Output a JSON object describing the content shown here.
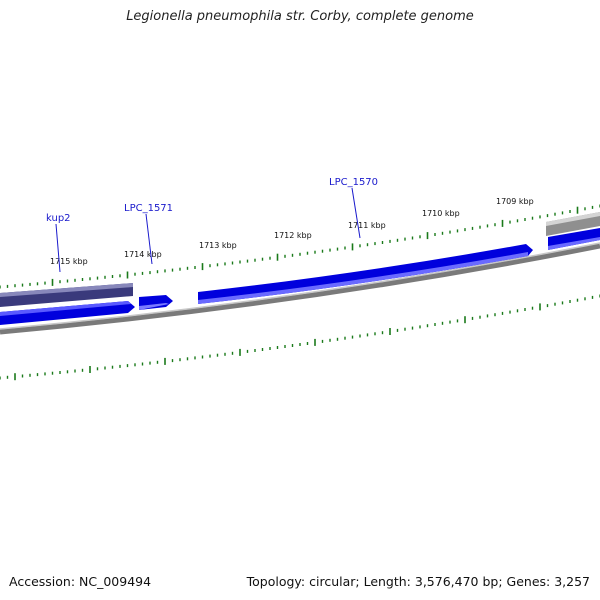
{
  "title": "Legionella pneumophila str. Corby, complete genome",
  "footer": {
    "accession": "Accession: NC_009494",
    "topology": "Topology: circular; Length: 3,576,470 bp; Genes: 3,257"
  },
  "scale_labels": [
    "1715 kbp",
    "1714 kbp",
    "1713 kbp",
    "1712 kbp",
    "1711 kbp",
    "1710 kbp",
    "1709 kbp"
  ],
  "gene_labels": [
    "kup2",
    "LPC_1571",
    "LPC_1570"
  ],
  "colors": {
    "forward_gene": "#0000dd",
    "forward_gene_highlight": "#5a5aff",
    "other_feature": "#3a3a7c",
    "other_feature_highlight": "#8888bb",
    "backbone": "#7a7a7a",
    "backbone_highlight": "#c8c8c8",
    "tick": "#1a7a1a",
    "label_line": "#1a1acc"
  }
}
